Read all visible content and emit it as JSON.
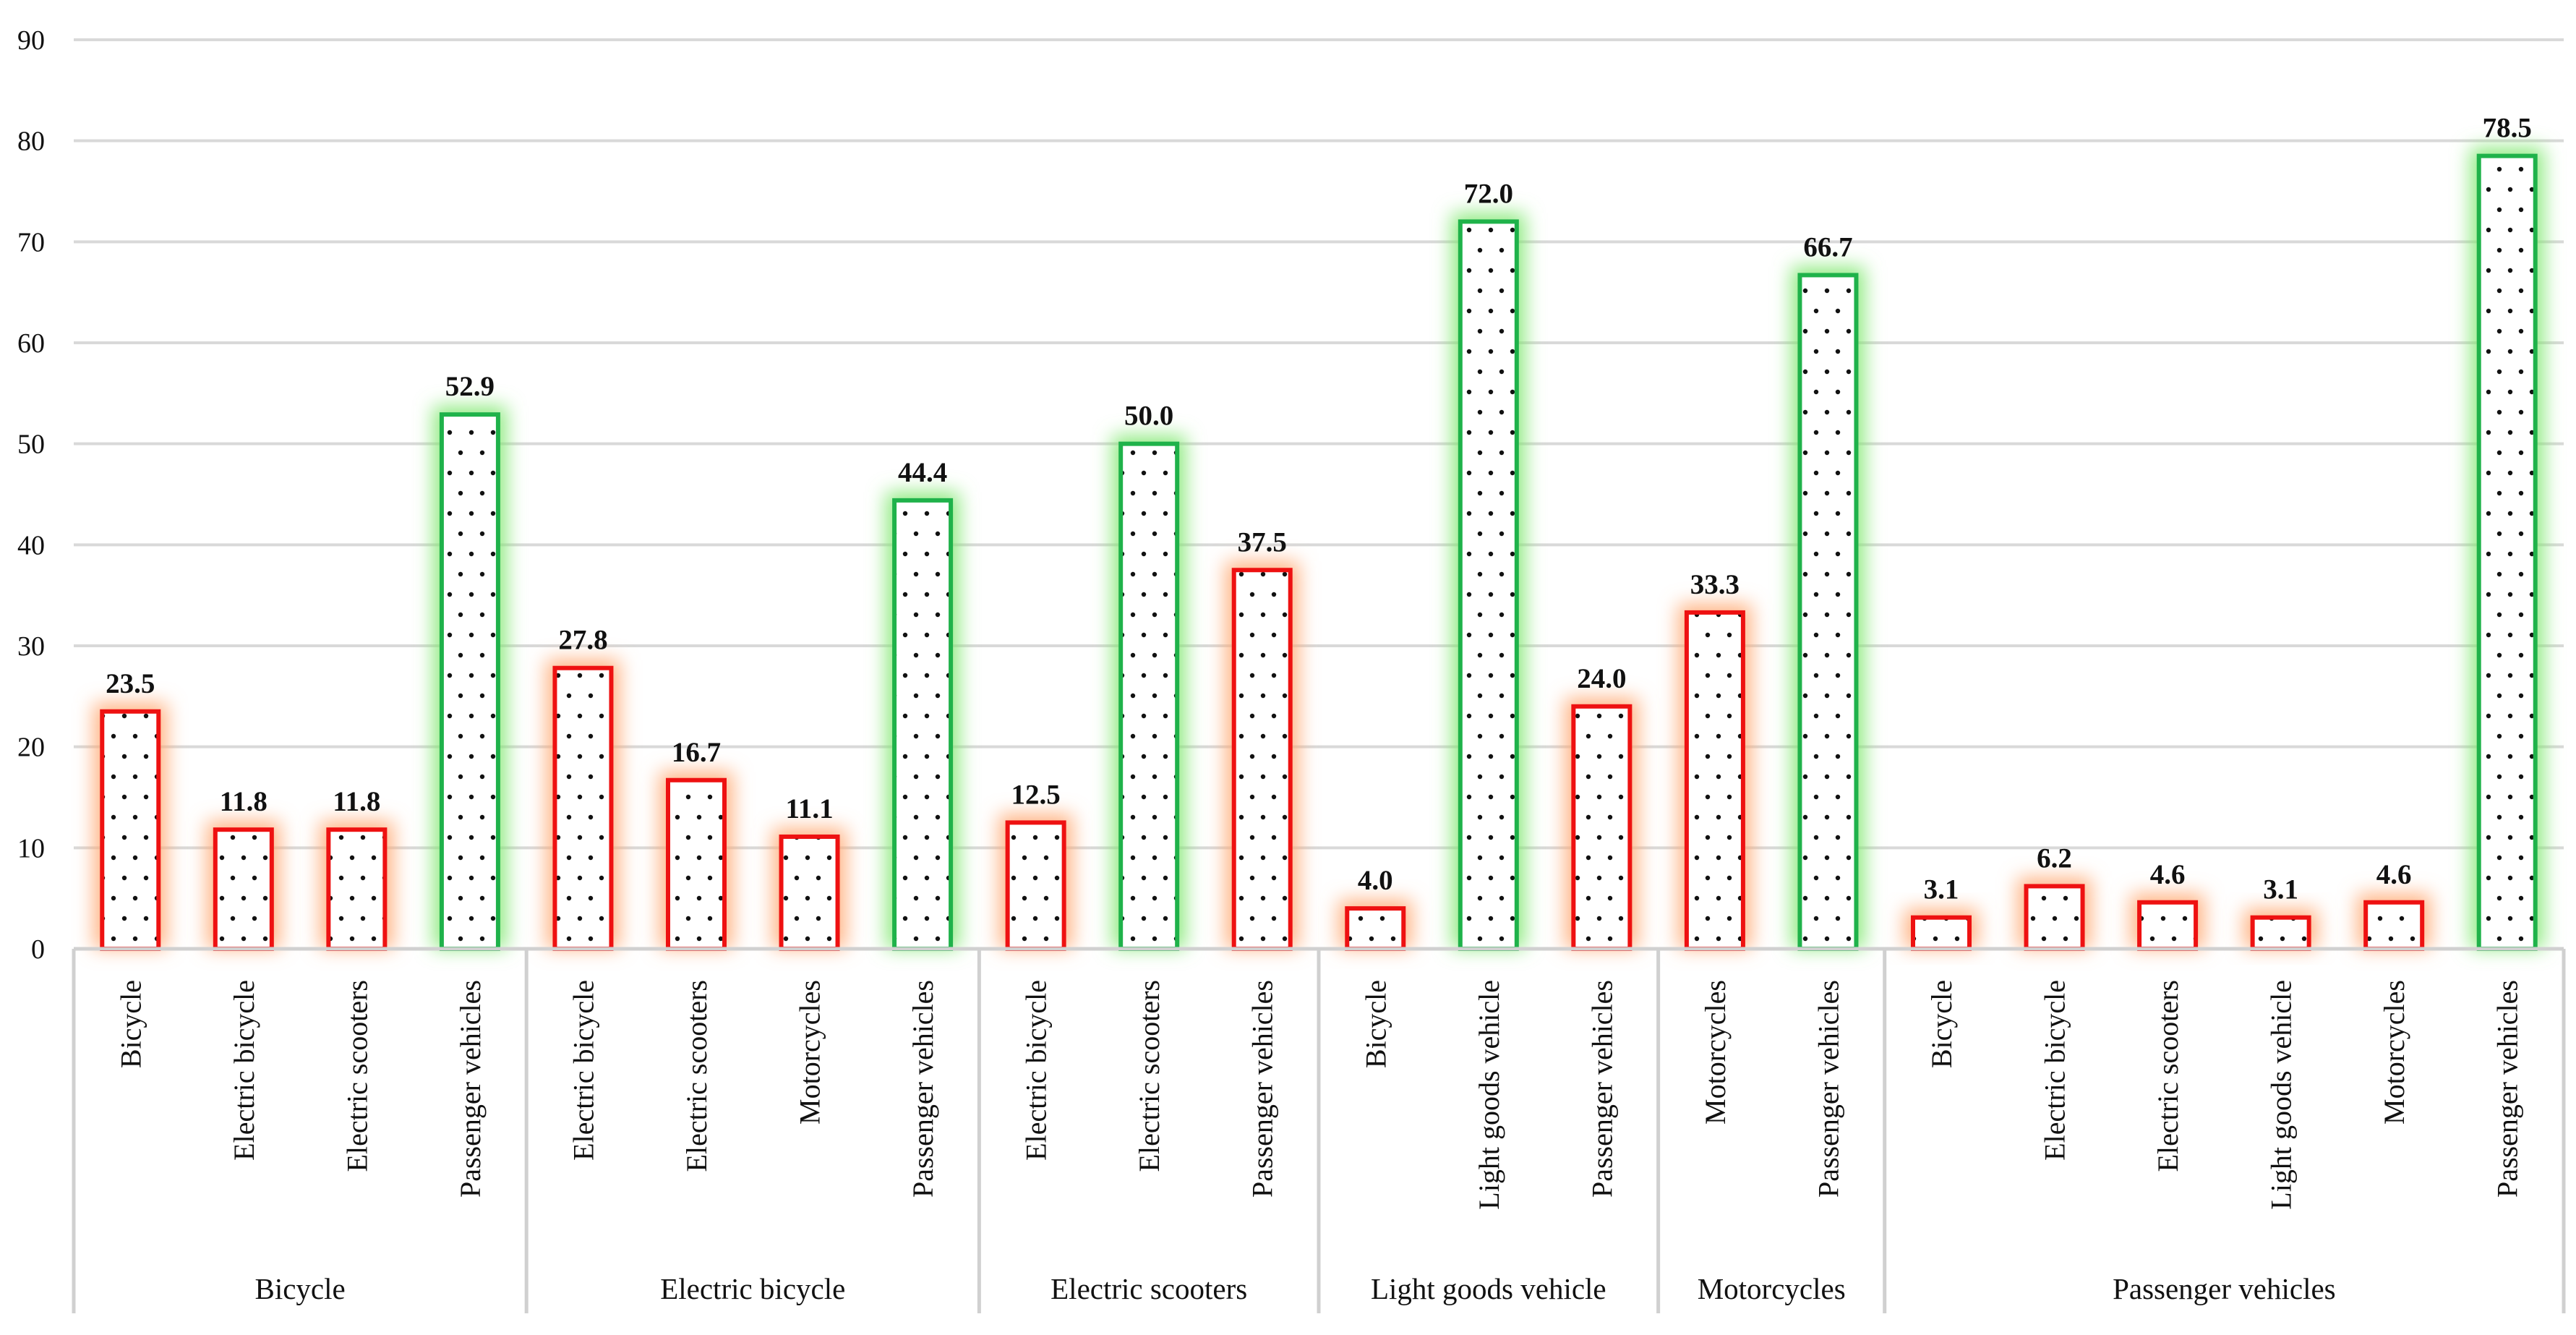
{
  "chart_data": {
    "type": "bar",
    "title": "",
    "xlabel": "",
    "ylabel": "",
    "ylim": [
      0,
      90
    ],
    "yticks": [
      0,
      10,
      20,
      30,
      40,
      50,
      60,
      70,
      80,
      90
    ],
    "grid": true,
    "colors": {
      "highlight": "#1fb24a",
      "normal": "#ee1111",
      "glow_highlight": "#7fe86f",
      "glow_normal": "#ffa872",
      "grid": "#d9d9d9",
      "axis": "#d0d0d0"
    },
    "groups": [
      {
        "name": "Bicycle",
        "bars": [
          {
            "label": "Bicycle",
            "value": 23.5,
            "highlight": false,
            "value_label": "23.5"
          },
          {
            "label": "Electric bicycle",
            "value": 11.8,
            "highlight": false,
            "value_label": "11.8"
          },
          {
            "label": "Electric scooters",
            "value": 11.8,
            "highlight": false,
            "value_label": "11.8"
          },
          {
            "label": "Passenger vehicles",
            "value": 52.9,
            "highlight": true,
            "value_label": "52.9"
          }
        ]
      },
      {
        "name": "Electric bicycle",
        "bars": [
          {
            "label": "Electric bicycle",
            "value": 27.8,
            "highlight": false,
            "value_label": "27.8"
          },
          {
            "label": "Electric scooters",
            "value": 16.7,
            "highlight": false,
            "value_label": "16.7"
          },
          {
            "label": "Motorcycles",
            "value": 11.1,
            "highlight": false,
            "value_label": "11.1"
          },
          {
            "label": "Passenger vehicles",
            "value": 44.4,
            "highlight": true,
            "value_label": "44.4"
          }
        ]
      },
      {
        "name": "Electric scooters",
        "bars": [
          {
            "label": "Electric bicycle",
            "value": 12.5,
            "highlight": false,
            "value_label": "12.5"
          },
          {
            "label": "Electric scooters",
            "value": 50.0,
            "highlight": true,
            "value_label": "50.0"
          },
          {
            "label": "Passenger vehicles",
            "value": 37.5,
            "highlight": false,
            "value_label": "37.5"
          }
        ]
      },
      {
        "name": "Light goods vehicle",
        "bars": [
          {
            "label": "Bicycle",
            "value": 4.0,
            "highlight": false,
            "value_label": "4.0"
          },
          {
            "label": "Light goods vehicle",
            "value": 72.0,
            "highlight": true,
            "value_label": "72.0"
          },
          {
            "label": "Passenger vehicles",
            "value": 24.0,
            "highlight": false,
            "value_label": "24.0"
          }
        ]
      },
      {
        "name": "Motorcycles",
        "bars": [
          {
            "label": "Motorcycles",
            "value": 33.3,
            "highlight": false,
            "value_label": "33.3"
          },
          {
            "label": "Passenger vehicles",
            "value": 66.7,
            "highlight": true,
            "value_label": "66.7"
          }
        ]
      },
      {
        "name": "Passenger vehicles",
        "bars": [
          {
            "label": "Bicycle",
            "value": 3.1,
            "highlight": false,
            "value_label": "3.1"
          },
          {
            "label": "Electric bicycle",
            "value": 6.2,
            "highlight": false,
            "value_label": "6.2"
          },
          {
            "label": "Electric scooters",
            "value": 4.6,
            "highlight": false,
            "value_label": "4.6"
          },
          {
            "label": "Light goods vehicle",
            "value": 3.1,
            "highlight": false,
            "value_label": "3.1"
          },
          {
            "label": "Motorcycles",
            "value": 4.6,
            "highlight": false,
            "value_label": "4.6"
          },
          {
            "label": "Passenger vehicles",
            "value": 78.5,
            "highlight": true,
            "value_label": "78.5"
          }
        ]
      }
    ]
  }
}
